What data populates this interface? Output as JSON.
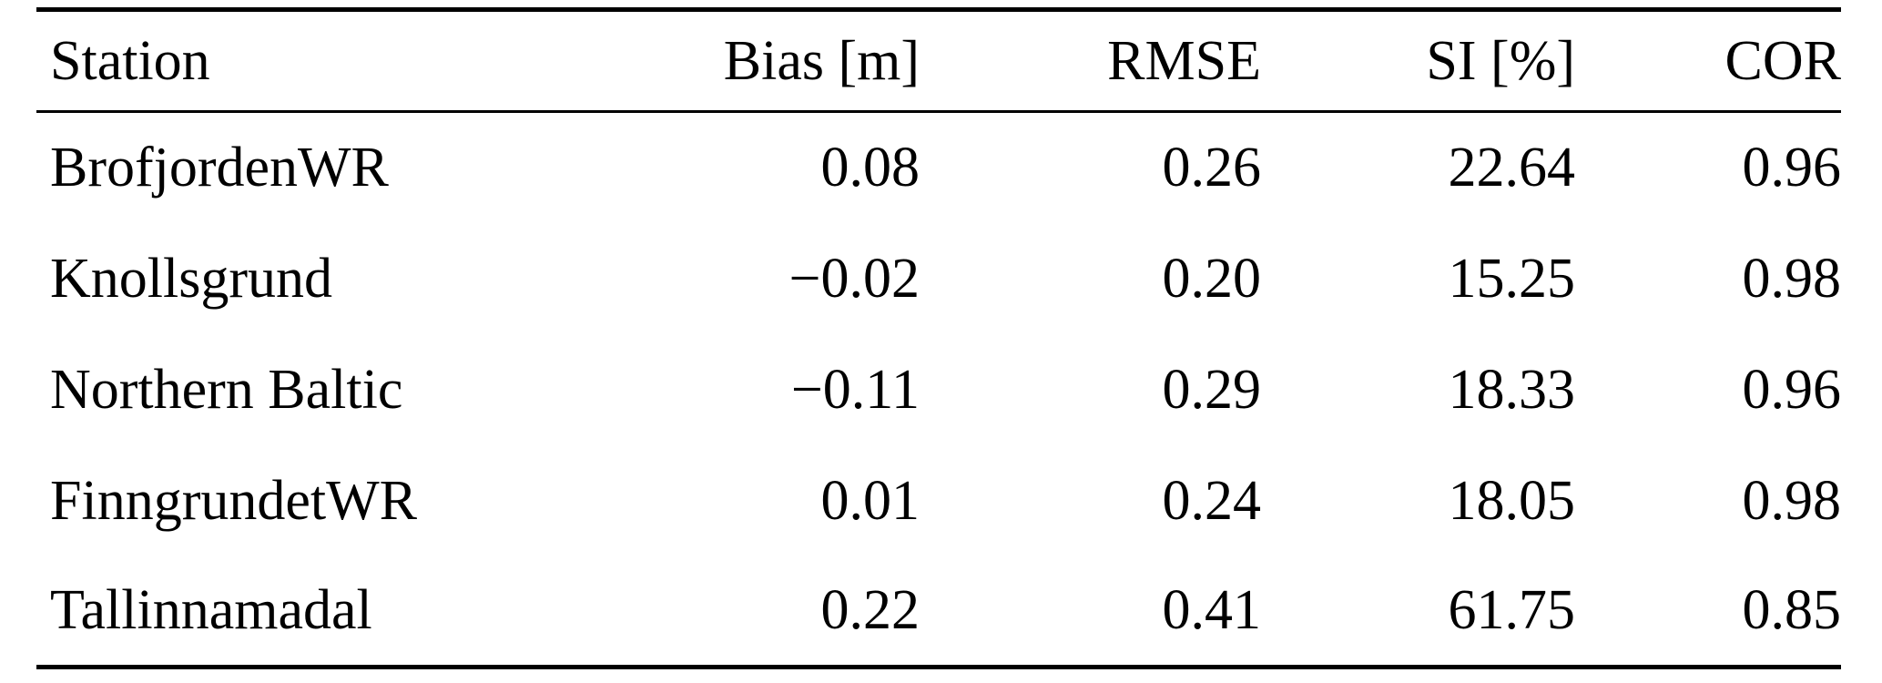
{
  "table": {
    "headers": {
      "station": "Station",
      "bias": "Bias [m]",
      "rmse": "RMSE",
      "si": "SI [%]",
      "cor": "COR"
    },
    "rows": [
      {
        "station": "BrofjordenWR",
        "bias": "0.08",
        "rmse": "0.26",
        "si": "22.64",
        "cor": "0.96"
      },
      {
        "station": "Knollsgrund",
        "bias": "−0.02",
        "rmse": "0.20",
        "si": "15.25",
        "cor": "0.98"
      },
      {
        "station": "Northern Baltic",
        "bias": "−0.11",
        "rmse": "0.29",
        "si": "18.33",
        "cor": "0.96"
      },
      {
        "station": "FinngrundetWR",
        "bias": "0.01",
        "rmse": "0.24",
        "si": "18.05",
        "cor": "0.98"
      },
      {
        "station": "Tallinnamadal",
        "bias": "0.22",
        "rmse": "0.41",
        "si": "61.75",
        "cor": "0.85"
      }
    ]
  }
}
